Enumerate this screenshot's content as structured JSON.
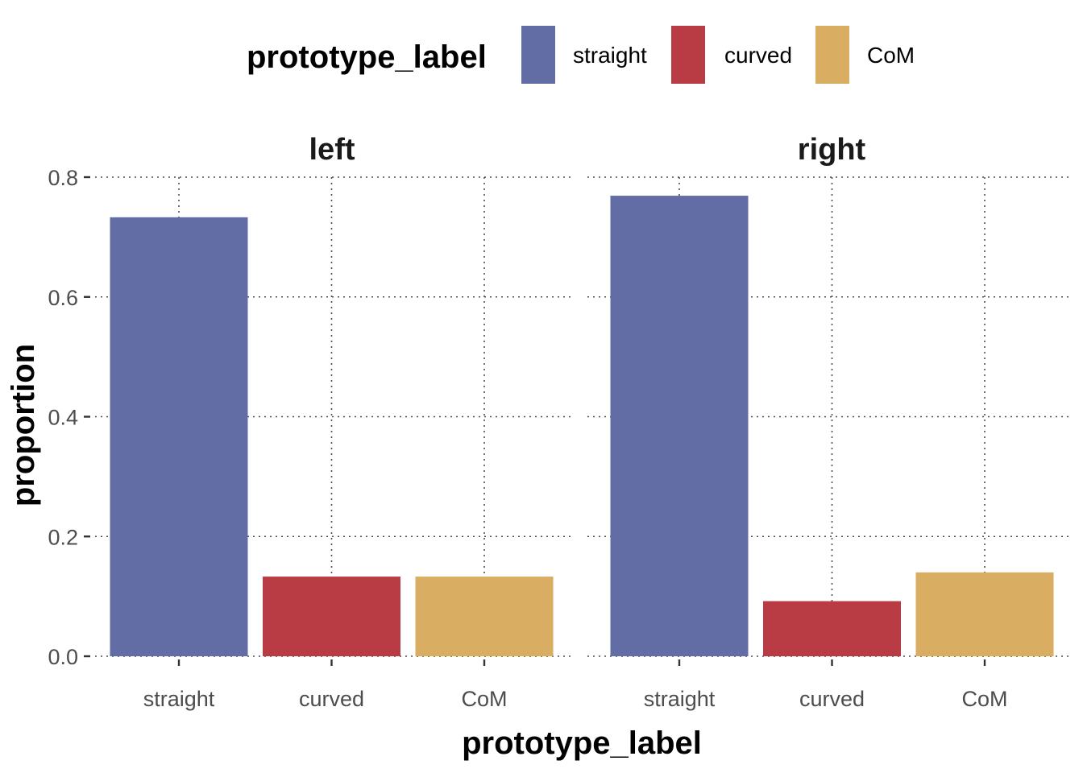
{
  "chart_data": {
    "type": "bar",
    "ylabel": "proportion",
    "xlabel": "prototype_label",
    "ylim": [
      0,
      0.8
    ],
    "yticks": [
      0.0,
      0.2,
      0.4,
      0.6,
      0.8
    ],
    "ytick_labels": [
      "0.0",
      "0.2",
      "0.4",
      "0.6",
      "0.8"
    ],
    "grid": true,
    "legend": {
      "title": "prototype_label",
      "position": "top",
      "entries": [
        {
          "label": "straight",
          "color": "#616da4"
        },
        {
          "label": "curved",
          "color": "#b93b43"
        },
        {
          "label": "CoM",
          "color": "#d9ae62"
        }
      ]
    },
    "categories": [
      "straight",
      "curved",
      "CoM"
    ],
    "facets": [
      {
        "title": "left",
        "values": [
          0.733,
          0.133,
          0.133
        ]
      },
      {
        "title": "right",
        "values": [
          0.769,
          0.092,
          0.14
        ]
      }
    ]
  }
}
